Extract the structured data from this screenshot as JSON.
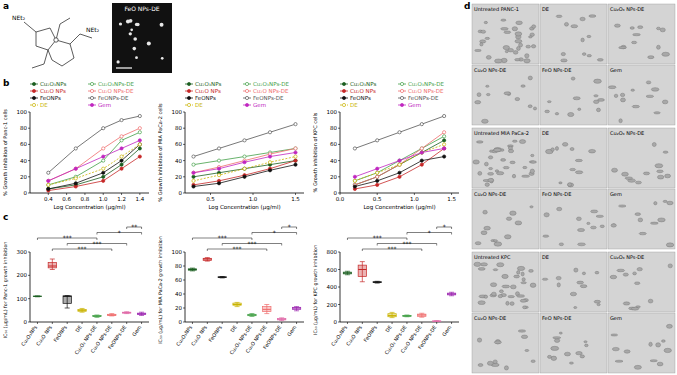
{
  "panel_labels": [
    "a",
    "b",
    "c",
    "d"
  ],
  "structure": {
    "labels": [
      "NEt₂",
      "NEt₂"
    ]
  },
  "tem_image": {
    "label": "FeO NPs-DE"
  },
  "chart_data": [
    {
      "type": "line",
      "x_label": "Log Concentration (µg/ml)",
      "y_label": "% Growth inhibition of Panc-1 cells",
      "x": [
        0.4,
        0.7,
        1.0,
        1.2,
        1.4
      ],
      "xlim": [
        0.2,
        1.5
      ],
      "xticks": [
        0.4,
        0.6,
        0.8,
        {
          "value": 1,
          "label": "1.0"
        },
        1.2,
        1.4
      ],
      "ylim": [
        0,
        100
      ],
      "yticks": [
        0,
        20,
        40,
        60,
        80,
        100
      ],
      "legend": "top",
      "grid": false,
      "series": [
        {
          "name": "Cu₂O₃NPs",
          "color": "#1b5e20",
          "marker": "circle",
          "line_style": "solid",
          "values": [
            5,
            10,
            20,
            35,
            55
          ]
        },
        {
          "name": "Cu₂O₃NPs-DE",
          "color": "#43a047",
          "marker": "open-circle",
          "line_style": "solid",
          "values": [
            10,
            20,
            40,
            65,
            75
          ]
        },
        {
          "name": "Cu₂O NPs",
          "color": "#c62828",
          "marker": "circle",
          "line_style": "solid",
          "values": [
            3,
            8,
            15,
            30,
            45
          ]
        },
        {
          "name": "Cu₂O NPs-DE",
          "color": "#ef6c6c",
          "marker": "open-circle",
          "line_style": "solid",
          "values": [
            15,
            30,
            55,
            70,
            80
          ]
        },
        {
          "name": "FeONPs",
          "color": "#111111",
          "marker": "circle",
          "line_style": "solid",
          "values": [
            5,
            12,
            25,
            40,
            60
          ]
        },
        {
          "name": "FeONPs-DE",
          "color": "#555555",
          "marker": "open-circle",
          "line_style": "solid",
          "values": [
            25,
            55,
            80,
            90,
            95
          ]
        },
        {
          "name": "DE",
          "color": "#c9b300",
          "marker": "open-circle",
          "line_style": "dashed",
          "values": [
            10,
            18,
            30,
            45,
            60
          ]
        },
        {
          "name": "Gem",
          "color": "#c026c0",
          "marker": "circle",
          "line_style": "solid",
          "values": [
            15,
            30,
            45,
            55,
            65
          ]
        }
      ]
    },
    {
      "type": "line",
      "x_label": "Log Concentration (µg/ml)",
      "y_label": "% Growth inhibition of MIA PaCa-2 cells",
      "x": [
        0.3,
        0.6,
        0.9,
        1.2,
        1.5
      ],
      "xlim": [
        0.2,
        1.6
      ],
      "xticks": [
        0.5,
        {
          "value": 1,
          "label": "1.0"
        },
        1.5
      ],
      "ylim": [
        0,
        100
      ],
      "yticks": [
        0,
        20,
        40,
        60,
        80,
        100
      ],
      "legend": "top",
      "grid": false,
      "series": [
        {
          "name": "Cu₂O₃NPs",
          "color": "#1b5e20",
          "marker": "circle",
          "line_style": "solid",
          "values": [
            20,
            25,
            30,
            35,
            40
          ]
        },
        {
          "name": "Cu₂O₃NPs-DE",
          "color": "#43a047",
          "marker": "open-circle",
          "line_style": "solid",
          "values": [
            35,
            40,
            45,
            50,
            55
          ]
        },
        {
          "name": "Cu₂O NPs",
          "color": "#c62828",
          "marker": "circle",
          "line_style": "solid",
          "values": [
            10,
            15,
            22,
            30,
            40
          ]
        },
        {
          "name": "Cu₂O NPs-DE",
          "color": "#ef6c6c",
          "marker": "open-circle",
          "line_style": "solid",
          "values": [
            25,
            32,
            40,
            48,
            55
          ]
        },
        {
          "name": "FeONPs",
          "color": "#111111",
          "marker": "circle",
          "line_style": "solid",
          "values": [
            8,
            12,
            20,
            28,
            35
          ]
        },
        {
          "name": "FeONPs-DE",
          "color": "#555555",
          "marker": "open-circle",
          "line_style": "solid",
          "values": [
            45,
            55,
            65,
            75,
            85
          ]
        },
        {
          "name": "DE",
          "color": "#c9b300",
          "marker": "open-circle",
          "line_style": "dashed",
          "values": [
            15,
            22,
            30,
            38,
            45
          ]
        },
        {
          "name": "Gem",
          "color": "#c026c0",
          "marker": "circle",
          "line_style": "solid",
          "values": [
            25,
            30,
            38,
            45,
            50
          ]
        }
      ]
    },
    {
      "type": "line",
      "x_label": "Log Concentration (µg/ml)",
      "y_label": "% Growth inhibition of KPC cells",
      "x": [
        0.2,
        0.5,
        0.8,
        1.1,
        1.4
      ],
      "xlim": [
        0,
        1.6
      ],
      "xticks": [
        {
          "value": 0,
          "label": "0.0"
        },
        0.5,
        {
          "value": 1,
          "label": "1.0"
        },
        1.5
      ],
      "ylim": [
        0,
        100
      ],
      "yticks": [
        0,
        20,
        40,
        60,
        80,
        100
      ],
      "legend": "top",
      "grid": false,
      "series": [
        {
          "name": "Cu₂O₃NPs",
          "color": "#1b5e20",
          "marker": "circle",
          "line_style": "solid",
          "values": [
            10,
            20,
            35,
            50,
            65
          ]
        },
        {
          "name": "Cu₂O₃NPs-DE",
          "color": "#43a047",
          "marker": "open-circle",
          "line_style": "solid",
          "values": [
            15,
            25,
            40,
            55,
            70
          ]
        },
        {
          "name": "Cu₂O NPs",
          "color": "#c62828",
          "marker": "circle",
          "line_style": "solid",
          "values": [
            5,
            10,
            20,
            35,
            55
          ]
        },
        {
          "name": "Cu₂O NPs-DE",
          "color": "#ef6c6c",
          "marker": "open-circle",
          "line_style": "solid",
          "values": [
            10,
            20,
            35,
            55,
            75
          ]
        },
        {
          "name": "FeONPs",
          "color": "#111111",
          "marker": "circle",
          "line_style": "solid",
          "values": [
            8,
            15,
            25,
            40,
            45
          ]
        },
        {
          "name": "FeONPs-DE",
          "color": "#555555",
          "marker": "open-circle",
          "line_style": "solid",
          "values": [
            55,
            65,
            75,
            85,
            95
          ]
        },
        {
          "name": "DE",
          "color": "#c9b300",
          "marker": "open-circle",
          "line_style": "dashed",
          "values": [
            15,
            25,
            35,
            50,
            60
          ]
        },
        {
          "name": "Gem",
          "color": "#c026c0",
          "marker": "circle",
          "line_style": "solid",
          "values": [
            20,
            30,
            40,
            50,
            55
          ]
        }
      ]
    },
    {
      "type": "box",
      "y_label": "IC₅₀ (µg/mL) for Panc-1 growth inhibition",
      "categories": [
        "Cu₂O₃NPs",
        "Cu₂O NPs",
        "FeONPs",
        "DE",
        "Cu₂O₃ NPs-DE",
        "Cu₂O NPs-DE",
        "FeONPs-DE",
        "Gem"
      ],
      "colors": [
        "#1b5e20",
        "#c62828",
        "#111111",
        "#c9b300",
        "#43a047",
        "#ef6c6c",
        "#e06aa8",
        "#9c27b0"
      ],
      "ylim": [
        0,
        300
      ],
      "yticks": [
        0,
        100,
        200,
        300
      ],
      "boxes": [
        {
          "min": 108,
          "q1": 109,
          "median": 110,
          "q3": 111,
          "max": 112
        },
        {
          "min": 225,
          "q1": 232,
          "median": 240,
          "q3": 255,
          "max": 270
        },
        {
          "min": 60,
          "q1": 80,
          "median": 110,
          "q3": 112,
          "max": 113
        },
        {
          "min": 42,
          "q1": 46,
          "median": 50,
          "q3": 54,
          "max": 58
        },
        {
          "min": 20,
          "q1": 23,
          "median": 25,
          "q3": 28,
          "max": 30
        },
        {
          "min": 26,
          "q1": 28,
          "median": 30,
          "q3": 33,
          "max": 36
        },
        {
          "min": 36,
          "q1": 38,
          "median": 40,
          "q3": 42,
          "max": 44
        },
        {
          "min": 28,
          "q1": 32,
          "median": 35,
          "q3": 38,
          "max": 42
        }
      ],
      "significance": [
        {
          "text": "***",
          "from": "Cu₂O NPs",
          "to": "Cu₂O NPs-DE"
        },
        {
          "text": "***",
          "from": "FeONPs",
          "to": "FeONPs-DE"
        },
        {
          "text": "***",
          "from": "Cu₂O₃NPs",
          "to": "Cu₂O₃ NPs-DE"
        },
        {
          "text": "*",
          "from": "Cu₂O₃ NPs-DE",
          "to": "Gem"
        },
        {
          "text": "**",
          "from": "FeONPs-DE",
          "to": "Gem"
        }
      ]
    },
    {
      "type": "box",
      "y_label": "IC₅₀ (µg/mL) for MIA PaCa-2 growth inhibition",
      "categories": [
        "Cu₂O₃NPs",
        "Cu₂O NPs",
        "FeONPs",
        "DE",
        "Cu₂O₃ NPs-DE",
        "Cu₂O NPs-DE",
        "FeONPs-DE",
        "Gem"
      ],
      "colors": [
        "#1b5e20",
        "#c62828",
        "#111111",
        "#c9b300",
        "#43a047",
        "#ef6c6c",
        "#e06aa8",
        "#9c27b0"
      ],
      "ylim": [
        0,
        100
      ],
      "yticks": [
        0,
        20,
        40,
        60,
        80,
        100
      ],
      "boxes": [
        {
          "min": 73,
          "q1": 74,
          "median": 75,
          "q3": 76,
          "max": 77
        },
        {
          "min": 87,
          "q1": 88,
          "median": 90,
          "q3": 91,
          "max": 92
        },
        {
          "min": 63,
          "q1": 63.5,
          "median": 64,
          "q3": 64.5,
          "max": 65
        },
        {
          "min": 22,
          "q1": 24,
          "median": 25,
          "q3": 27,
          "max": 28
        },
        {
          "min": 8,
          "q1": 9,
          "median": 10,
          "q3": 11,
          "max": 12
        },
        {
          "min": 12,
          "q1": 15,
          "median": 18,
          "q3": 22,
          "max": 25
        },
        {
          "min": 2,
          "q1": 3,
          "median": 4,
          "q3": 5,
          "max": 6
        },
        {
          "min": 16,
          "q1": 18,
          "median": 20,
          "q3": 21,
          "max": 22
        }
      ],
      "significance": [
        {
          "text": "***",
          "from": "Cu₂O NPs",
          "to": "Cu₂O NPs-DE"
        },
        {
          "text": "***",
          "from": "FeONPs",
          "to": "FeONPs-DE"
        },
        {
          "text": "***",
          "from": "Cu₂O₃NPs",
          "to": "Cu₂O₃ NPs-DE"
        },
        {
          "text": "*",
          "from": "Cu₂O₃ NPs-DE",
          "to": "Gem"
        },
        {
          "text": "*",
          "from": "FeONPs-DE",
          "to": "Gem"
        }
      ]
    },
    {
      "type": "box",
      "y_label": "IC₅₀ (µg/mL) for KPC growth inhibition",
      "categories": [
        "Cu₂O₃NPs",
        "Cu₂O NPs",
        "FeONPs",
        "DE",
        "Cu₂O₃ NPs-DE",
        "Cu₂O NPs-DE",
        "FeONPs-DE",
        "Gem"
      ],
      "colors": [
        "#1b5e20",
        "#c62828",
        "#111111",
        "#c9b300",
        "#43a047",
        "#ef6c6c",
        "#e06aa8",
        "#9c27b0"
      ],
      "ylim": [
        0,
        800
      ],
      "yticks": [
        0,
        200,
        400,
        600,
        800
      ],
      "boxes": [
        {
          "min": 540,
          "q1": 550,
          "median": 560,
          "q3": 570,
          "max": 580
        },
        {
          "min": 460,
          "q1": 520,
          "median": 600,
          "q3": 650,
          "max": 690
        },
        {
          "min": 445,
          "q1": 450,
          "median": 455,
          "q3": 460,
          "max": 465
        },
        {
          "min": 50,
          "q1": 60,
          "median": 75,
          "q3": 95,
          "max": 110
        },
        {
          "min": 60,
          "q1": 65,
          "median": 70,
          "q3": 75,
          "max": 80
        },
        {
          "min": 55,
          "q1": 65,
          "median": 80,
          "q3": 90,
          "max": 100
        },
        {
          "min": 5,
          "q1": 8,
          "median": 10,
          "q3": 12,
          "max": 15
        },
        {
          "min": 300,
          "q1": 310,
          "median": 320,
          "q3": 330,
          "max": 340
        }
      ],
      "significance": [
        {
          "text": "***",
          "from": "Cu₂O NPs",
          "to": "Cu₂O NPs-DE"
        },
        {
          "text": "***",
          "from": "FeONPs",
          "to": "FeONPs-DE"
        },
        {
          "text": "***",
          "from": "Cu₂O₃NPs",
          "to": "Cu₂O₃ NPs-DE"
        },
        {
          "text": "*",
          "from": "Cu₂O₃ NPs-DE",
          "to": "Gem"
        },
        {
          "text": "*",
          "from": "FeONPs-DE",
          "to": "Gem"
        }
      ]
    }
  ],
  "micrographs": [
    {
      "labels": [
        "Untreated PANC-1",
        "DE",
        "Cu₂O₃ NPs-DE",
        "Cu₂O NPs-DE",
        "FeO NPs-DE",
        "Gem"
      ]
    },
    {
      "labels": [
        "Untreated MIA PaCa-2",
        "DE",
        "Cu₂O₃ NPs-DE",
        "Cu₂O NPs-DE",
        "FeO NPs-DE",
        "Gem"
      ]
    },
    {
      "labels": [
        "Untreated KPC",
        "DE",
        "Cu₂O₃ NPs-DE",
        "Cu₂O NPs-DE",
        "FeO NPs-DE",
        "Gem"
      ]
    }
  ]
}
